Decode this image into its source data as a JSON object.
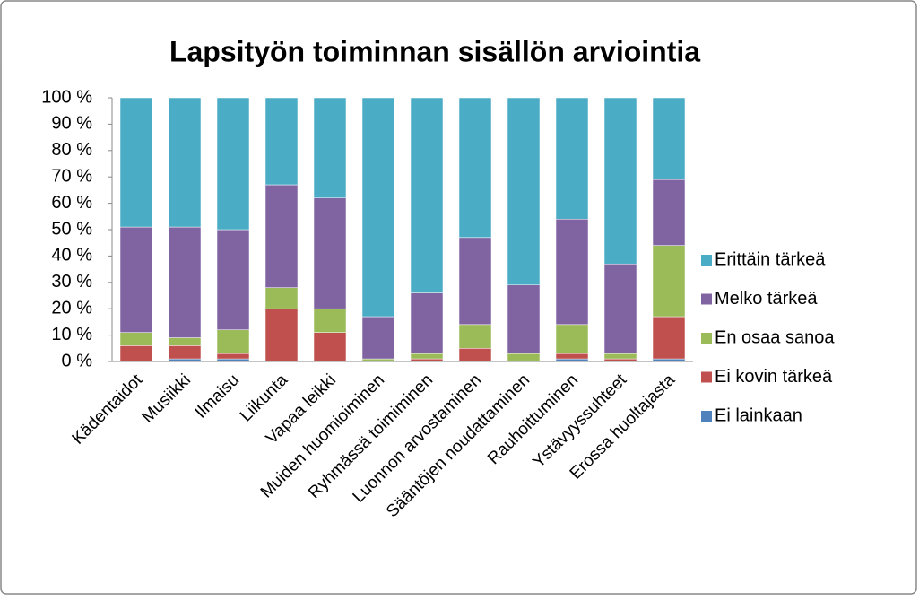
{
  "chart_data": {
    "type": "stacked_bar_100",
    "title": "Lapsityön toiminnan sisällön arviointia",
    "categories": [
      "Kädentaidot",
      "Musiikki",
      "Ilmaisu",
      "Liikunta",
      "Vapaa leikki",
      "Muiden huomioiminen",
      "Ryhmässä toimiminen",
      "Luonnon arvostaminen",
      "Sääntöjen noudattaminen",
      "Rauhoittuminen",
      "Ystävyyssuhteet",
      "Erossa huoltajasta"
    ],
    "series": [
      {
        "name": "Ei lainkaan",
        "color": "#4f81bd",
        "values": [
          0,
          1,
          1,
          0,
          0,
          0,
          0,
          0,
          0,
          1,
          0,
          1
        ]
      },
      {
        "name": "Ei kovin tärkeä",
        "color": "#c0504d",
        "values": [
          6,
          5,
          2,
          20,
          11,
          0,
          1,
          5,
          0,
          2,
          1,
          16
        ]
      },
      {
        "name": "En osaa sanoa",
        "color": "#9bbb59",
        "values": [
          5,
          3,
          9,
          8,
          9,
          1,
          2,
          9,
          3,
          11,
          2,
          27
        ]
      },
      {
        "name": "Melko tärkeä",
        "color": "#8064a2",
        "values": [
          40,
          42,
          38,
          39,
          42,
          16,
          23,
          33,
          26,
          40,
          34,
          25
        ]
      },
      {
        "name": "Erittäin tärkeä",
        "color": "#4bacc6",
        "values": [
          49,
          49,
          50,
          33,
          38,
          83,
          74,
          53,
          71,
          46,
          63,
          31
        ]
      }
    ],
    "ylim": [
      0,
      100
    ],
    "yticks": [
      {
        "value": 0,
        "label": "0 %"
      },
      {
        "value": 10,
        "label": "10 %"
      },
      {
        "value": 20,
        "label": "20 %"
      },
      {
        "value": 30,
        "label": "30 %"
      },
      {
        "value": 40,
        "label": "40 %"
      },
      {
        "value": 50,
        "label": "50 %"
      },
      {
        "value": 60,
        "label": "60 %"
      },
      {
        "value": 70,
        "label": "70 %"
      },
      {
        "value": 80,
        "label": "80 %"
      },
      {
        "value": 90,
        "label": "90 %"
      },
      {
        "value": 100,
        "label": "100 %"
      }
    ],
    "legend": "right"
  }
}
